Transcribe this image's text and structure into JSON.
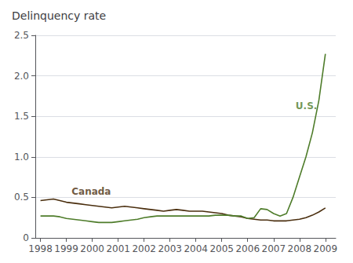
{
  "chart_data": {
    "type": "line",
    "title": "Delinquency rate",
    "x": [
      1998.0,
      1998.25,
      1998.5,
      1998.75,
      1999.0,
      1999.25,
      1999.5,
      1999.75,
      2000.0,
      2000.25,
      2000.5,
      2000.75,
      2001.0,
      2001.25,
      2001.5,
      2001.75,
      2002.0,
      2002.25,
      2002.5,
      2002.75,
      2003.0,
      2003.25,
      2003.5,
      2003.75,
      2004.0,
      2004.25,
      2004.5,
      2004.75,
      2005.0,
      2005.25,
      2005.5,
      2005.75,
      2006.0,
      2006.25,
      2006.5,
      2006.75,
      2007.0,
      2007.25,
      2007.5,
      2007.75,
      2008.0,
      2008.25,
      2008.5,
      2008.75,
      2009.0
    ],
    "series": [
      {
        "color": "#4a2e0e",
        "values": [
          0.46,
          0.47,
          0.48,
          0.46,
          0.44,
          0.43,
          0.42,
          0.41,
          0.4,
          0.39,
          0.38,
          0.37,
          0.38,
          0.39,
          0.38,
          0.37,
          0.36,
          0.35,
          0.34,
          0.33,
          0.34,
          0.35,
          0.34,
          0.33,
          0.33,
          0.33,
          0.32,
          0.31,
          0.3,
          0.28,
          0.27,
          0.26,
          0.24,
          0.23,
          0.22,
          0.22,
          0.21,
          0.21,
          0.21,
          0.22,
          0.23,
          0.25,
          0.28,
          0.32,
          0.37
        ]
      },
      {
        "color": "#4e7c2a",
        "values": [
          0.27,
          0.27,
          0.27,
          0.26,
          0.24,
          0.23,
          0.22,
          0.21,
          0.2,
          0.19,
          0.19,
          0.19,
          0.2,
          0.21,
          0.22,
          0.23,
          0.25,
          0.26,
          0.27,
          0.27,
          0.27,
          0.27,
          0.27,
          0.27,
          0.27,
          0.27,
          0.27,
          0.28,
          0.28,
          0.28,
          0.27,
          0.27,
          0.24,
          0.25,
          0.36,
          0.35,
          0.3,
          0.27,
          0.3,
          0.5,
          0.75,
          1.0,
          1.3,
          1.7,
          2.27
        ]
      }
    ],
    "xlim": [
      1997.8,
      2009.4
    ],
    "xticks": [
      1998,
      1999,
      2000,
      2001,
      2002,
      2003,
      2004,
      2005,
      2006,
      2007,
      2008,
      2009
    ],
    "ylim": [
      0,
      2.5
    ],
    "yticks": [
      0,
      0.5,
      {
        "value": 1,
        "label": "1.0"
      },
      1.5,
      {
        "value": 2,
        "label": "2.0"
      },
      2.5
    ],
    "grid": true,
    "annotations": [
      {
        "text": "Canada",
        "x": 1999.2,
        "y": 0.57,
        "color": "#4a2e0e"
      },
      {
        "text": "U.S.",
        "x": 2007.85,
        "y": 1.63,
        "color": "#4e7c2a"
      }
    ]
  }
}
